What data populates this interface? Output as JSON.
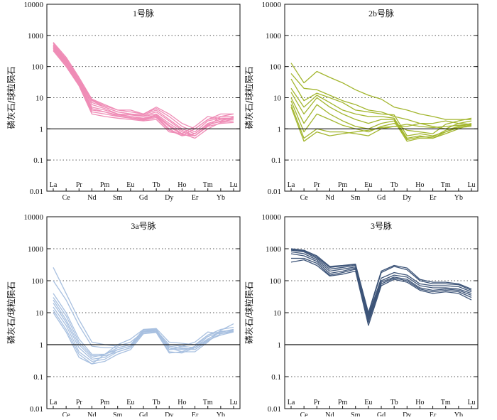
{
  "figure": {
    "y_axis_label": "磷灰石/球粒陨石",
    "colors": {
      "axis": "#111111",
      "grid": "#555555"
    }
  },
  "chart_data": [
    {
      "type": "line",
      "title": "1号脉",
      "color": "#ef8cb6",
      "categories": [
        "La",
        "Ce",
        "Pr",
        "Nd",
        "Pm",
        "Sm",
        "Eu",
        "Gd",
        "Tb",
        "Dy",
        "Ho",
        "Er",
        "Tm",
        "Yb",
        "Lu"
      ],
      "ylim": [
        0.01,
        10000
      ],
      "yscale": "log",
      "yticks": [
        "0.01",
        "0.1",
        "1",
        "10",
        "100",
        "1000",
        "10000"
      ],
      "gridlines": [
        0.1,
        10,
        100,
        1000
      ],
      "reference_line": 1,
      "series": [
        {
          "name": "s1",
          "values": [
            600,
            200,
            45,
            9,
            6,
            4,
            4,
            3,
            5,
            3,
            1.5,
            1,
            2,
            2.5,
            2.5
          ]
        },
        {
          "name": "s2",
          "values": [
            550,
            180,
            40,
            8.5,
            5.5,
            4,
            3.5,
            3,
            4.5,
            2.5,
            1.2,
            0.8,
            1.8,
            2.2,
            2.2
          ]
        },
        {
          "name": "s3",
          "values": [
            500,
            170,
            38,
            8,
            5,
            3.5,
            3,
            2.8,
            4,
            2,
            1,
            0.7,
            1.5,
            2,
            2
          ]
        },
        {
          "name": "s4",
          "values": [
            480,
            160,
            36,
            7,
            5,
            3.5,
            3,
            2.6,
            3.5,
            1.8,
            0.9,
            0.6,
            1.3,
            1.8,
            2.4
          ]
        },
        {
          "name": "s5",
          "values": [
            450,
            150,
            34,
            6,
            4.5,
            3,
            2.8,
            2.5,
            3,
            1.5,
            0.8,
            0.6,
            1.2,
            2.5,
            3
          ]
        },
        {
          "name": "s6",
          "values": [
            420,
            140,
            32,
            5,
            4,
            3,
            2.5,
            2.2,
            2.8,
            1.3,
            0.7,
            0.5,
            1,
            1.6,
            1.8
          ]
        },
        {
          "name": "s7",
          "values": [
            400,
            130,
            30,
            4.5,
            3.5,
            2.8,
            2.5,
            2.1,
            2.6,
            1.2,
            0.65,
            0.6,
            1.2,
            1.5,
            1.6
          ]
        },
        {
          "name": "s8",
          "values": [
            380,
            120,
            28,
            4,
            3.5,
            2.6,
            2.3,
            2,
            2.5,
            1,
            0.6,
            0.7,
            1.4,
            1.7,
            2
          ]
        },
        {
          "name": "s9",
          "values": [
            350,
            110,
            26,
            3.5,
            3,
            2.5,
            2.2,
            1.9,
            2.3,
            0.9,
            0.6,
            1,
            2,
            3,
            3
          ]
        },
        {
          "name": "s10",
          "values": [
            320,
            100,
            24,
            3,
            2.5,
            2.2,
            2,
            1.8,
            2,
            0.8,
            0.7,
            1.2,
            2.5,
            2,
            2.2
          ]
        }
      ]
    },
    {
      "type": "line",
      "title": "2b号脉",
      "color": "#a3b62e",
      "categories": [
        "La",
        "Ce",
        "Pr",
        "Nd",
        "Pm",
        "Sm",
        "Eu",
        "Gd",
        "Tb",
        "Dy",
        "Ho",
        "Er",
        "Tm",
        "Yb",
        "Lu"
      ],
      "ylim": [
        0.01,
        10000
      ],
      "yscale": "log",
      "yticks": [
        "0.01",
        "0.1",
        "1",
        "10",
        "100",
        "1000",
        "10000"
      ],
      "gridlines": [
        0.1,
        10,
        100,
        1000
      ],
      "reference_line": 1,
      "series": [
        {
          "name": "s1",
          "values": [
            130,
            30,
            70,
            45,
            30,
            18,
            12,
            9,
            5,
            4,
            3,
            2.5,
            2,
            2,
            2
          ]
        },
        {
          "name": "s2",
          "values": [
            60,
            20,
            18,
            12,
            8,
            6,
            4,
            3.5,
            2.5,
            2,
            1.5,
            1.2,
            1,
            1.5,
            1.8
          ]
        },
        {
          "name": "s3",
          "values": [
            40,
            8,
            14,
            10,
            7,
            4,
            3.5,
            3,
            2.8,
            0.6,
            0.7,
            0.6,
            0.8,
            1.2,
            1.5
          ]
        },
        {
          "name": "s4",
          "values": [
            20,
            5,
            12,
            7,
            4,
            3,
            2.5,
            2.5,
            2.2,
            0.5,
            0.6,
            0.5,
            0.7,
            1,
            1.4
          ]
        },
        {
          "name": "s5",
          "values": [
            15,
            3,
            10,
            5,
            3,
            2,
            1.5,
            2,
            2,
            0.45,
            0.55,
            0.55,
            0.9,
            1.2,
            1.3
          ]
        },
        {
          "name": "s6",
          "values": [
            10,
            1.5,
            6,
            3,
            1.8,
            1.2,
            1,
            1.5,
            1.8,
            0.4,
            0.5,
            0.5,
            0.8,
            1.1,
            1.2
          ]
        },
        {
          "name": "s7",
          "values": [
            8,
            0.8,
            3,
            2,
            1.3,
            1,
            0.8,
            1.2,
            1.5,
            0.9,
            0.8,
            0.7,
            1.4,
            1.8,
            2.2
          ]
        },
        {
          "name": "s8",
          "values": [
            6,
            0.5,
            1,
            0.8,
            0.8,
            0.7,
            0.6,
            1,
            1.2,
            1.2,
            1.5,
            1.5,
            1.8,
            1.5,
            1.4
          ]
        },
        {
          "name": "s9",
          "values": [
            5,
            0.4,
            0.8,
            0.6,
            0.7,
            0.8,
            0.9,
            1.1,
            1.2,
            1.4,
            1.2,
            1.1,
            1.2,
            1.3,
            1.4
          ]
        }
      ]
    },
    {
      "type": "line",
      "title": "3a号脉",
      "color": "#a8c0e0",
      "categories": [
        "La",
        "Ce",
        "Pr",
        "Nd",
        "Pm",
        "Sm",
        "Eu",
        "Gd",
        "Tb",
        "Dy",
        "Ho",
        "Er",
        "Tm",
        "Yb",
        "Lu"
      ],
      "ylim": [
        0.01,
        10000
      ],
      "yscale": "log",
      "yticks": [
        "0.01",
        "0.1",
        "1",
        "10",
        "100",
        "1000",
        "10000"
      ],
      "gridlines": [
        0.1,
        10,
        100,
        1000
      ],
      "reference_line": 1,
      "series": [
        {
          "name": "s1",
          "values": [
            260,
            40,
            6,
            1.2,
            1,
            0.9,
            1.2,
            2.5,
            2.8,
            1,
            0.9,
            0.8,
            1.5,
            2.5,
            3
          ]
        },
        {
          "name": "s2",
          "values": [
            100,
            25,
            4,
            0.9,
            0.8,
            0.8,
            1,
            2.2,
            2.5,
            0.9,
            0.8,
            0.7,
            1.3,
            2.2,
            2.8
          ]
        },
        {
          "name": "s3",
          "values": [
            40,
            10,
            1.5,
            0.5,
            0.5,
            0.7,
            0.9,
            2.8,
            3,
            0.8,
            0.7,
            0.8,
            1.5,
            2.5,
            3
          ]
        },
        {
          "name": "s4",
          "values": [
            30,
            8,
            1.2,
            0.45,
            0.45,
            0.6,
            0.8,
            2.5,
            2.8,
            0.7,
            0.75,
            0.7,
            1.4,
            2,
            2.5
          ]
        },
        {
          "name": "s5",
          "values": [
            25,
            6,
            1,
            0.4,
            0.5,
            0.8,
            1,
            3,
            3.2,
            1.2,
            1.1,
            1,
            2,
            3,
            3.5
          ]
        },
        {
          "name": "s6",
          "values": [
            20,
            5,
            0.8,
            0.35,
            0.4,
            0.7,
            0.9,
            2.6,
            2.9,
            0.8,
            0.6,
            0.6,
            1.2,
            2.8,
            4.5
          ]
        },
        {
          "name": "s7",
          "values": [
            15,
            4,
            0.6,
            0.3,
            0.35,
            0.6,
            0.8,
            2.4,
            2.6,
            0.6,
            0.55,
            0.8,
            1.8,
            2.4,
            3
          ]
        },
        {
          "name": "s8",
          "values": [
            12,
            3,
            0.5,
            0.25,
            0.3,
            0.5,
            0.7,
            2.2,
            2.4,
            0.55,
            0.6,
            0.9,
            2,
            2.6,
            2.8
          ]
        },
        {
          "name": "s9",
          "values": [
            10,
            2.5,
            0.4,
            0.25,
            0.5,
            1,
            1.5,
            3,
            3,
            0.7,
            0.9,
            1.2,
            2.5,
            2.2,
            2.6
          ]
        }
      ]
    },
    {
      "type": "line",
      "title": "3号脉",
      "color": "#3d5478",
      "categories": [
        "La",
        "Ce",
        "Pr",
        "Nd",
        "Pm",
        "Sm",
        "Eu",
        "Gd",
        "Tb",
        "Dy",
        "Ho",
        "Er",
        "Tm",
        "Yb",
        "Lu"
      ],
      "ylim": [
        0.01,
        10000
      ],
      "yscale": "log",
      "yticks": [
        "0.01",
        "0.1",
        "1",
        "10",
        "100",
        "1000",
        "10000"
      ],
      "gridlines": [
        0.1,
        10,
        100,
        1000
      ],
      "reference_line": 1,
      "series": [
        {
          "name": "s1",
          "values": [
            1000,
            900,
            600,
            280,
            300,
            330,
            10,
            200,
            300,
            250,
            110,
            90,
            90,
            80,
            55
          ]
        },
        {
          "name": "s2",
          "values": [
            950,
            850,
            550,
            260,
            290,
            320,
            9,
            180,
            280,
            220,
            100,
            80,
            80,
            75,
            50
          ]
        },
        {
          "name": "s3",
          "values": [
            900,
            800,
            500,
            230,
            260,
            300,
            8,
            120,
            180,
            150,
            80,
            70,
            70,
            65,
            45
          ]
        },
        {
          "name": "s4",
          "values": [
            800,
            700,
            450,
            200,
            230,
            270,
            7,
            100,
            150,
            130,
            70,
            60,
            60,
            55,
            40
          ]
        },
        {
          "name": "s5",
          "values": [
            700,
            600,
            400,
            170,
            200,
            250,
            6,
            90,
            130,
            110,
            60,
            50,
            55,
            50,
            35
          ]
        },
        {
          "name": "s6",
          "values": [
            500,
            500,
            350,
            150,
            180,
            230,
            5,
            80,
            120,
            100,
            55,
            45,
            50,
            45,
            30
          ]
        },
        {
          "name": "s7",
          "values": [
            380,
            450,
            300,
            140,
            160,
            200,
            4,
            70,
            110,
            90,
            50,
            40,
            45,
            40,
            25
          ]
        }
      ]
    }
  ]
}
